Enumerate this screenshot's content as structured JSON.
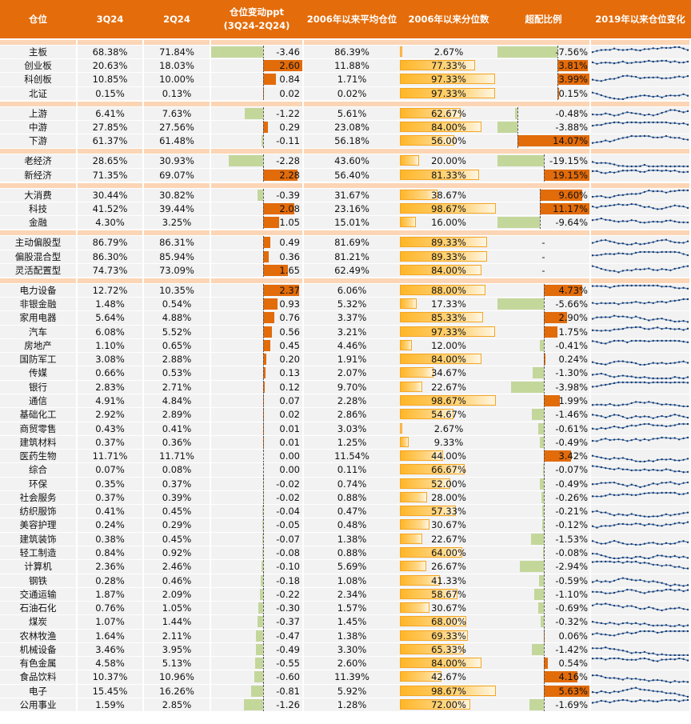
{
  "header": [
    "仓位",
    "3Q24",
    "2Q24",
    "仓位变动ppt\n(3Q24-2Q24)",
    "2006年以来平均仓位",
    "2006年以来分位数",
    "超配比例",
    "2019年以来仓位变化"
  ],
  "colors": {
    "header": "#E46C0A",
    "separator": "#FBD5B5",
    "positive_bar": "#E26B0A",
    "negative_bar": "#C4D79B",
    "percentile_bar": "#FFB628",
    "sparkline": "#4F81BD"
  },
  "groups": [
    {
      "rows": [
        [
          "主板",
          "68.38%",
          "71.84%",
          "-3.46",
          "86.39%",
          "2.67%",
          "-7.56%"
        ],
        [
          "创业板",
          "20.63%",
          "18.03%",
          "2.60",
          "11.88%",
          "77.33%",
          "3.81%"
        ],
        [
          "科创板",
          "10.85%",
          "10.00%",
          "0.84",
          "1.71%",
          "97.33%",
          "3.99%"
        ],
        [
          "北证",
          "0.15%",
          "0.13%",
          "0.02",
          "0.02%",
          "97.33%",
          "0.15%"
        ]
      ]
    },
    {
      "rows": [
        [
          "上游",
          "6.41%",
          "7.63%",
          "-1.22",
          "5.61%",
          "62.67%",
          "-0.48%"
        ],
        [
          "中游",
          "27.85%",
          "27.56%",
          "0.29",
          "23.08%",
          "84.00%",
          "-3.88%"
        ],
        [
          "下游",
          "61.37%",
          "61.48%",
          "-0.11",
          "56.18%",
          "56.00%",
          "14.07%"
        ]
      ]
    },
    {
      "rows": [
        [
          "老经济",
          "28.65%",
          "30.93%",
          "-2.28",
          "43.60%",
          "20.00%",
          "-19.15%"
        ],
        [
          "新经济",
          "71.35%",
          "69.07%",
          "2.28",
          "56.40%",
          "81.33%",
          "19.15%"
        ]
      ]
    },
    {
      "rows": [
        [
          "大消费",
          "30.44%",
          "30.82%",
          "-0.39",
          "31.67%",
          "38.67%",
          "9.60%"
        ],
        [
          "科技",
          "41.52%",
          "39.44%",
          "2.08",
          "23.16%",
          "98.67%",
          "11.17%"
        ],
        [
          "金融",
          "4.30%",
          "3.25%",
          "1.05",
          "15.01%",
          "16.00%",
          "-9.64%"
        ]
      ]
    },
    {
      "rows": [
        [
          "主动偏股型",
          "86.79%",
          "86.31%",
          "0.49",
          "81.69%",
          "89.33%",
          "-"
        ],
        [
          "偏股混合型",
          "86.30%",
          "85.94%",
          "0.36",
          "81.21%",
          "89.33%",
          "-"
        ],
        [
          "灵活配置型",
          "74.73%",
          "73.09%",
          "1.65",
          "62.49%",
          "84.00%",
          "-"
        ]
      ]
    },
    {
      "rows": [
        [
          "电力设备",
          "12.72%",
          "10.35%",
          "2.37",
          "6.06%",
          "88.00%",
          "4.73%"
        ],
        [
          "非银金融",
          "1.48%",
          "0.54%",
          "0.93",
          "5.32%",
          "17.33%",
          "-5.66%"
        ],
        [
          "家用电器",
          "5.64%",
          "4.88%",
          "0.76",
          "3.37%",
          "85.33%",
          "2.90%"
        ],
        [
          "汽车",
          "6.08%",
          "5.52%",
          "0.56",
          "3.21%",
          "97.33%",
          "1.75%"
        ],
        [
          "房地产",
          "1.10%",
          "0.65%",
          "0.45",
          "4.46%",
          "12.00%",
          "-0.41%"
        ],
        [
          "国防军工",
          "3.08%",
          "2.88%",
          "0.20",
          "1.91%",
          "84.00%",
          "0.24%"
        ],
        [
          "传媒",
          "0.66%",
          "0.53%",
          "0.13",
          "2.07%",
          "34.67%",
          "-1.30%"
        ],
        [
          "银行",
          "2.83%",
          "2.71%",
          "0.12",
          "9.70%",
          "22.67%",
          "-3.98%"
        ],
        [
          "通信",
          "4.91%",
          "4.84%",
          "0.07",
          "2.28%",
          "98.67%",
          "1.99%"
        ],
        [
          "基础化工",
          "2.92%",
          "2.89%",
          "0.02",
          "2.86%",
          "54.67%",
          "-1.46%"
        ],
        [
          "商贸零售",
          "0.43%",
          "0.41%",
          "0.01",
          "3.03%",
          "2.67%",
          "-0.61%"
        ],
        [
          "建筑材料",
          "0.37%",
          "0.36%",
          "0.01",
          "1.25%",
          "9.33%",
          "-0.49%"
        ],
        [
          "医药生物",
          "11.71%",
          "11.71%",
          "0.00",
          "11.54%",
          "44.00%",
          "3.42%"
        ],
        [
          "综合",
          "0.07%",
          "0.08%",
          "0.00",
          "0.11%",
          "66.67%",
          "-0.07%"
        ],
        [
          "环保",
          "0.35%",
          "0.37%",
          "-0.02",
          "0.74%",
          "52.00%",
          "-0.49%"
        ],
        [
          "社会服务",
          "0.37%",
          "0.39%",
          "-0.02",
          "0.88%",
          "28.00%",
          "-0.26%"
        ],
        [
          "纺织服饰",
          "0.41%",
          "0.45%",
          "-0.04",
          "0.47%",
          "57.33%",
          "-0.21%"
        ],
        [
          "美容护理",
          "0.24%",
          "0.29%",
          "-0.05",
          "0.48%",
          "30.67%",
          "-0.12%"
        ],
        [
          "建筑装饰",
          "0.38%",
          "0.45%",
          "-0.07",
          "1.38%",
          "22.67%",
          "-1.53%"
        ],
        [
          "轻工制造",
          "0.84%",
          "0.92%",
          "-0.08",
          "0.88%",
          "64.00%",
          "-0.08%"
        ],
        [
          "计算机",
          "2.36%",
          "2.46%",
          "-0.10",
          "5.69%",
          "26.67%",
          "-2.94%"
        ],
        [
          "钢铁",
          "0.28%",
          "0.46%",
          "-0.18",
          "1.08%",
          "41.33%",
          "-0.59%"
        ],
        [
          "交通运输",
          "1.87%",
          "2.09%",
          "-0.22",
          "2.34%",
          "58.67%",
          "-1.10%"
        ],
        [
          "石油石化",
          "0.76%",
          "1.05%",
          "-0.30",
          "1.57%",
          "30.67%",
          "-0.69%"
        ],
        [
          "煤炭",
          "1.07%",
          "1.44%",
          "-0.37",
          "1.45%",
          "68.00%",
          "-0.32%"
        ],
        [
          "农林牧渔",
          "1.64%",
          "2.11%",
          "-0.47",
          "1.38%",
          "69.33%",
          "0.06%"
        ],
        [
          "机械设备",
          "3.46%",
          "3.95%",
          "-0.49",
          "3.30%",
          "65.33%",
          "-1.42%"
        ],
        [
          "有色金属",
          "4.58%",
          "5.13%",
          "-0.55",
          "2.60%",
          "84.00%",
          "0.54%"
        ],
        [
          "食品饮料",
          "10.37%",
          "10.96%",
          "-0.60",
          "11.39%",
          "42.67%",
          "4.16%"
        ],
        [
          "电子",
          "15.45%",
          "16.26%",
          "-0.81",
          "5.92%",
          "98.67%",
          "5.63%"
        ],
        [
          "公用事业",
          "1.59%",
          "2.85%",
          "-1.26",
          "1.28%",
          "72.00%",
          "-1.69%"
        ]
      ]
    }
  ]
}
